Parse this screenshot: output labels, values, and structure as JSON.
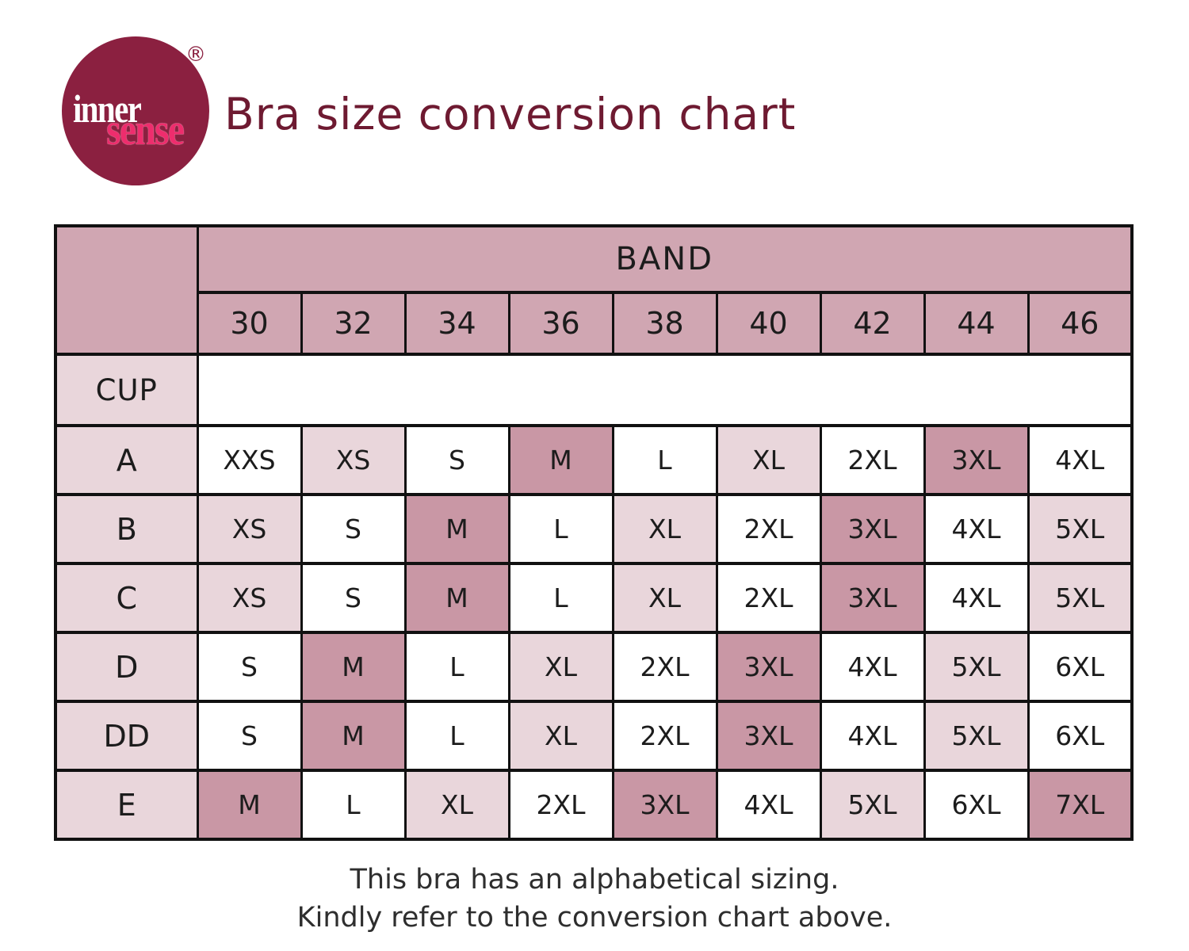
{
  "header": {
    "logo": {
      "word1": "inner",
      "word2": "sense",
      "registered_mark": "®",
      "circle_color": "#8b2040",
      "word1_color": "#ffffff",
      "word2_color": "#ee2d6d"
    },
    "title": "Bra size conversion chart",
    "title_color": "#6e1a31"
  },
  "table": {
    "band_label": "BAND",
    "cup_label": "CUP",
    "band_sizes": [
      "30",
      "32",
      "34",
      "36",
      "38",
      "40",
      "42",
      "44",
      "46"
    ],
    "colors": {
      "header_pink": "#d0a6b2",
      "light_pink": "#e9d6db",
      "dark_pink": "#c997a5",
      "white": "#ffffff",
      "border": "#111111"
    },
    "rows": [
      {
        "cup": "A",
        "cells": [
          {
            "v": "XXS",
            "c": "white"
          },
          {
            "v": "XS",
            "c": "light"
          },
          {
            "v": "S",
            "c": "white"
          },
          {
            "v": "M",
            "c": "dark"
          },
          {
            "v": "L",
            "c": "white"
          },
          {
            "v": "XL",
            "c": "light"
          },
          {
            "v": "2XL",
            "c": "white"
          },
          {
            "v": "3XL",
            "c": "dark"
          },
          {
            "v": "4XL",
            "c": "white"
          }
        ]
      },
      {
        "cup": "B",
        "cells": [
          {
            "v": "XS",
            "c": "light"
          },
          {
            "v": "S",
            "c": "white"
          },
          {
            "v": "M",
            "c": "dark"
          },
          {
            "v": "L",
            "c": "white"
          },
          {
            "v": "XL",
            "c": "light"
          },
          {
            "v": "2XL",
            "c": "white"
          },
          {
            "v": "3XL",
            "c": "dark"
          },
          {
            "v": "4XL",
            "c": "white"
          },
          {
            "v": "5XL",
            "c": "light"
          }
        ]
      },
      {
        "cup": "C",
        "cells": [
          {
            "v": "XS",
            "c": "light"
          },
          {
            "v": "S",
            "c": "white"
          },
          {
            "v": "M",
            "c": "dark"
          },
          {
            "v": "L",
            "c": "white"
          },
          {
            "v": "XL",
            "c": "light"
          },
          {
            "v": "2XL",
            "c": "white"
          },
          {
            "v": "3XL",
            "c": "dark"
          },
          {
            "v": "4XL",
            "c": "white"
          },
          {
            "v": "5XL",
            "c": "light"
          }
        ]
      },
      {
        "cup": "D",
        "cells": [
          {
            "v": "S",
            "c": "white"
          },
          {
            "v": "M",
            "c": "dark"
          },
          {
            "v": "L",
            "c": "white"
          },
          {
            "v": "XL",
            "c": "light"
          },
          {
            "v": "2XL",
            "c": "white"
          },
          {
            "v": "3XL",
            "c": "dark"
          },
          {
            "v": "4XL",
            "c": "white"
          },
          {
            "v": "5XL",
            "c": "light"
          },
          {
            "v": "6XL",
            "c": "white"
          }
        ]
      },
      {
        "cup": "DD",
        "cells": [
          {
            "v": "S",
            "c": "white"
          },
          {
            "v": "M",
            "c": "dark"
          },
          {
            "v": "L",
            "c": "white"
          },
          {
            "v": "XL",
            "c": "light"
          },
          {
            "v": "2XL",
            "c": "white"
          },
          {
            "v": "3XL",
            "c": "dark"
          },
          {
            "v": "4XL",
            "c": "white"
          },
          {
            "v": "5XL",
            "c": "light"
          },
          {
            "v": "6XL",
            "c": "white"
          }
        ]
      },
      {
        "cup": "E",
        "cells": [
          {
            "v": "M",
            "c": "dark"
          },
          {
            "v": "L",
            "c": "white"
          },
          {
            "v": "XL",
            "c": "light"
          },
          {
            "v": "2XL",
            "c": "white"
          },
          {
            "v": "3XL",
            "c": "dark"
          },
          {
            "v": "4XL",
            "c": "white"
          },
          {
            "v": "5XL",
            "c": "light"
          },
          {
            "v": "6XL",
            "c": "white"
          },
          {
            "v": "7XL",
            "c": "dark"
          }
        ]
      }
    ]
  },
  "footer": {
    "line1": "This bra has an alphabetical sizing.",
    "line2": "Kindly refer to the conversion chart above."
  },
  "chart_data": {
    "type": "table",
    "title": "Bra size conversion chart",
    "band_header": "BAND",
    "columns": [
      "CUP",
      "30",
      "32",
      "34",
      "36",
      "38",
      "40",
      "42",
      "44",
      "46"
    ],
    "rows": [
      [
        "A",
        "XXS",
        "XS",
        "S",
        "M",
        "L",
        "XL",
        "2XL",
        "3XL",
        "4XL"
      ],
      [
        "B",
        "XS",
        "S",
        "M",
        "L",
        "XL",
        "2XL",
        "3XL",
        "4XL",
        "5XL"
      ],
      [
        "C",
        "XS",
        "S",
        "M",
        "L",
        "XL",
        "2XL",
        "3XL",
        "4XL",
        "5XL"
      ],
      [
        "D",
        "S",
        "M",
        "L",
        "XL",
        "2XL",
        "3XL",
        "4XL",
        "5XL",
        "6XL"
      ],
      [
        "DD",
        "S",
        "M",
        "L",
        "XL",
        "2XL",
        "3XL",
        "4XL",
        "5XL",
        "6XL"
      ],
      [
        "E",
        "M",
        "L",
        "XL",
        "2XL",
        "3XL",
        "4XL",
        "5XL",
        "6XL",
        "7XL"
      ]
    ]
  }
}
